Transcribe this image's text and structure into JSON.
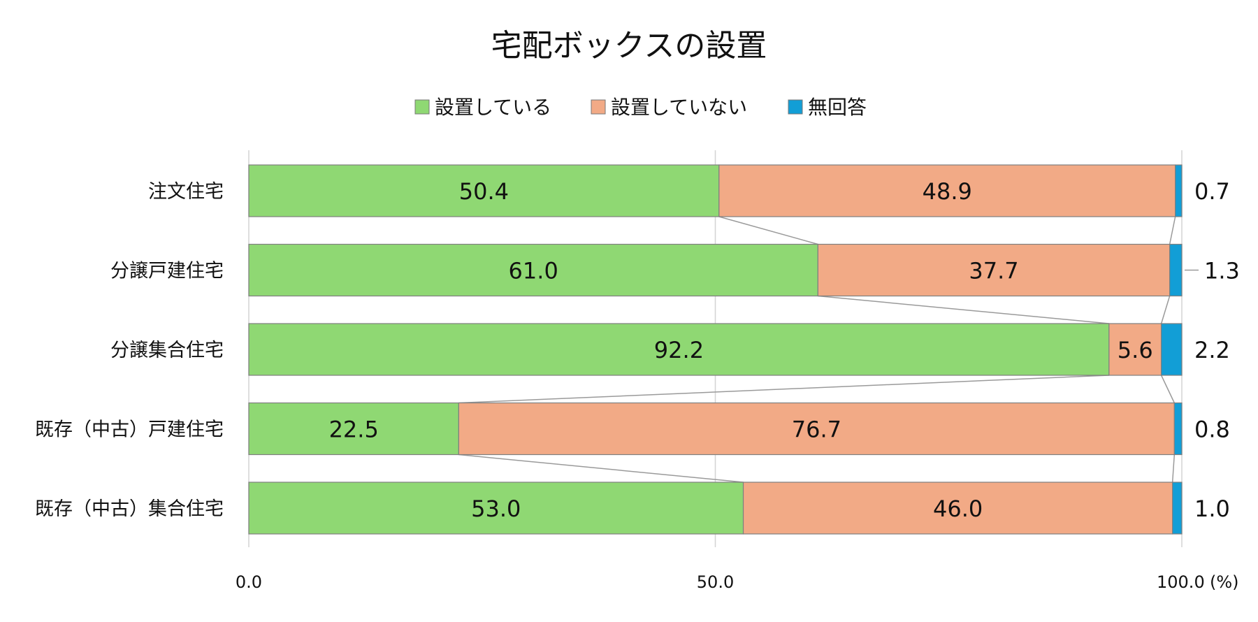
{
  "chart_data": {
    "type": "bar",
    "orientation": "horizontal",
    "stacked": true,
    "title": "宅配ボックスの設置",
    "categories": [
      "注文住宅",
      "分譲戸建住宅",
      "分譲集合住宅",
      "既存（中古）戸建住宅",
      "既存（中古）集合住宅"
    ],
    "series": [
      {
        "name": "設置している",
        "color": "#8fd873",
        "values": [
          50.4,
          61.0,
          92.2,
          22.5,
          53.0
        ]
      },
      {
        "name": "設置していない",
        "color": "#f2aa86",
        "values": [
          48.9,
          37.7,
          5.6,
          76.7,
          46.0
        ]
      },
      {
        "name": "無回答",
        "color": "#129ed6",
        "values": [
          0.7,
          1.3,
          2.2,
          0.8,
          1.0
        ]
      }
    ],
    "xlim": [
      0,
      100
    ],
    "xticks": [
      "0.0",
      "50.0",
      "100.0"
    ],
    "xunit": "(%)",
    "grid": true,
    "legend_position": "top",
    "series_lines": true
  }
}
